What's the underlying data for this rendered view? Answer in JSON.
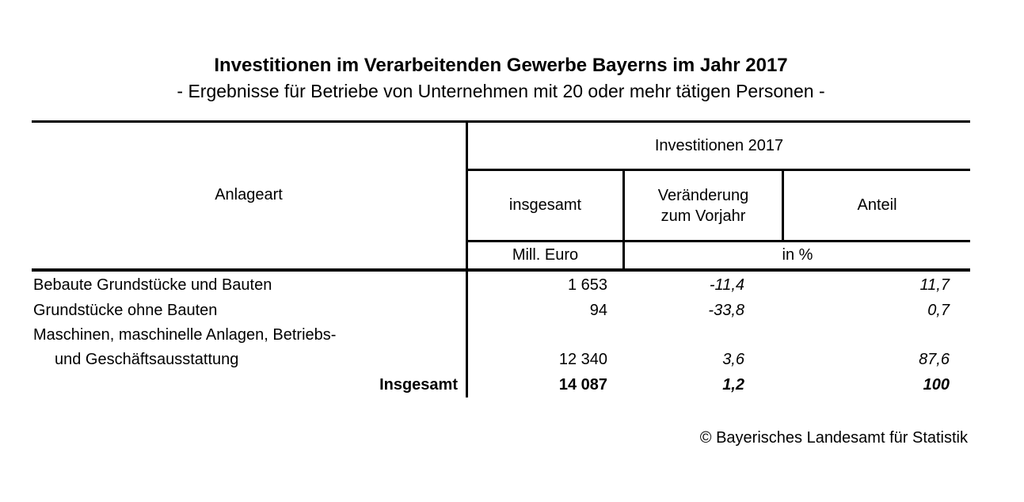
{
  "page": {
    "title": "Investitionen im Verarbeitenden Gewerbe Bayerns im Jahr 2017",
    "subtitle": "- Ergebnisse für Betriebe von Unternehmen mit 20 oder mehr tätigen Personen -",
    "footer": "© Bayerisches Landesamt für Statistik"
  },
  "table": {
    "corner_header": "Anlageart",
    "group_header": "Investitionen 2017",
    "col_headers": {
      "insgesamt": "insgesamt",
      "veraenderung_line1": "Veränderung",
      "veraenderung_line2": "zum Vorjahr",
      "anteil": "Anteil"
    },
    "unit_row": {
      "mill_euro": "Mill. Euro",
      "in_percent": "in %"
    },
    "rows": [
      {
        "label": "Bebaute Grundstücke und Bauten",
        "indent": false,
        "total": false,
        "insgesamt": "1 653",
        "veraenderung": "-11,4",
        "anteil": "11,7"
      },
      {
        "label": "Grundstücke ohne Bauten",
        "indent": false,
        "total": false,
        "insgesamt": "94",
        "veraenderung": "-33,8",
        "anteil": "0,7"
      },
      {
        "label": "Maschinen, maschinelle Anlagen, Betriebs-",
        "indent": false,
        "total": false,
        "insgesamt": "",
        "veraenderung": "",
        "anteil": ""
      },
      {
        "label": "und Geschäftsausstattung",
        "indent": true,
        "total": false,
        "insgesamt": "12 340",
        "veraenderung": "3,6",
        "anteil": "87,6"
      },
      {
        "label": "Insgesamt",
        "indent": false,
        "total": true,
        "insgesamt": "14 087",
        "veraenderung": "1,2",
        "anteil": "100"
      }
    ]
  },
  "chart_data": {
    "type": "table",
    "title": "Investitionen im Verarbeitenden Gewerbe Bayerns im Jahr 2017",
    "subtitle": "- Ergebnisse für Betriebe von Unternehmen mit 20 oder mehr tätigen Personen -",
    "columns": [
      "Anlageart",
      "Investitionen 2017 insgesamt (Mill. Euro)",
      "Investitionen 2017 Veränderung zum Vorjahr (in %)",
      "Investitionen 2017 Anteil (in %)"
    ],
    "rows": [
      [
        "Bebaute Grundstücke und Bauten",
        1653,
        -11.4,
        11.7
      ],
      [
        "Grundstücke ohne Bauten",
        94,
        -33.8,
        0.7
      ],
      [
        "Maschinen, maschinelle Anlagen, Betriebs- und Geschäftsausstattung",
        12340,
        3.6,
        87.6
      ],
      [
        "Insgesamt",
        14087,
        1.2,
        100
      ]
    ],
    "source": "© Bayerisches Landesamt für Statistik"
  }
}
